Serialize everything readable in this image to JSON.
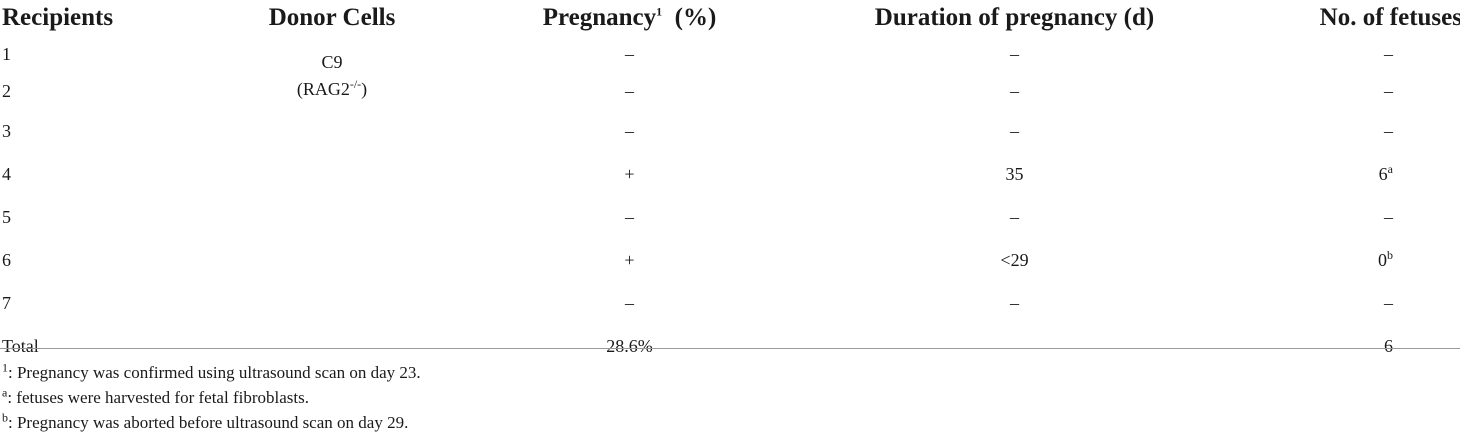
{
  "table": {
    "headers": {
      "recipients": "Recipients",
      "donor_cells": "Donor Cells",
      "pregnancy": "Pregnancy",
      "pregnancy_sup": "1",
      "pregnancy_unit": "(%)",
      "duration": "Duration of pregnancy (d)",
      "fetuses": "No. of fetuses"
    },
    "donor": {
      "line1": "C9",
      "line2_base": "(RAG2",
      "line2_sup": "-/-",
      "line2_end": ")"
    },
    "rows": [
      {
        "recipient": "1",
        "pregnancy": "–",
        "duration": "–",
        "fetuses": "–",
        "fetuses_sup": ""
      },
      {
        "recipient": "2",
        "pregnancy": "–",
        "duration": "–",
        "fetuses": "–",
        "fetuses_sup": ""
      },
      {
        "recipient": "3",
        "pregnancy": "–",
        "duration": "–",
        "fetuses": "–",
        "fetuses_sup": ""
      },
      {
        "recipient": "4",
        "pregnancy": "+",
        "duration": "35",
        "fetuses": "6",
        "fetuses_sup": "a"
      },
      {
        "recipient": "5",
        "pregnancy": "–",
        "duration": "–",
        "fetuses": "–",
        "fetuses_sup": ""
      },
      {
        "recipient": "6",
        "pregnancy": "+",
        "duration": "<29",
        "fetuses": "0",
        "fetuses_sup": "b"
      },
      {
        "recipient": "7",
        "pregnancy": "–",
        "duration": "–",
        "fetuses": "–",
        "fetuses_sup": ""
      }
    ],
    "total": {
      "label": "Total",
      "pregnancy": "28.6%",
      "duration": "",
      "fetuses": "6"
    }
  },
  "footnotes": [
    {
      "marker": "1",
      "text": ": Pregnancy was confirmed using ultrasound scan on day 23."
    },
    {
      "marker": "a",
      "text": ": fetuses were harvested for fetal fibroblasts."
    },
    {
      "marker": "b",
      "text": ": Pregnancy was aborted before ultrasound scan on day 29."
    }
  ]
}
